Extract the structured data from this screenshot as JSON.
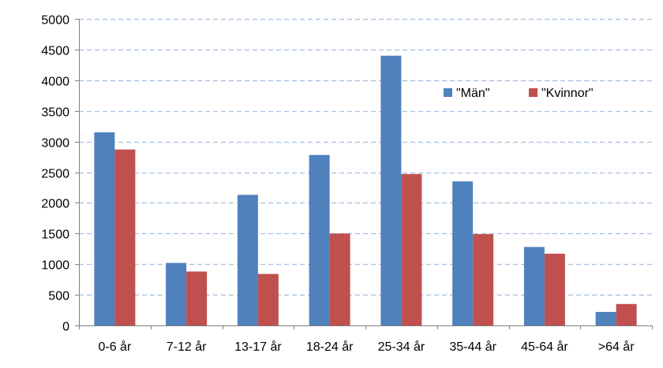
{
  "chart_data": {
    "type": "bar",
    "categories": [
      "0-6 år",
      "7-12 år",
      "13-17 år",
      "18-24 år",
      "25-34 år",
      "35-44 år",
      "45-64 år",
      ">64 år"
    ],
    "series": [
      {
        "name": "\"Män\"",
        "color": "#4f81bd",
        "values": [
          3150,
          1020,
          2130,
          2780,
          4400,
          2350,
          1280,
          220
        ]
      },
      {
        "name": "\"Kvinnor\"",
        "color": "#c0504d",
        "values": [
          2870,
          880,
          840,
          1500,
          2470,
          1490,
          1170,
          350
        ]
      }
    ],
    "yticks": [
      "0",
      "500",
      "1000",
      "1500",
      "2000",
      "2500",
      "3000",
      "3500",
      "4000",
      "4500",
      "5000"
    ],
    "ylim": [
      0,
      5000
    ],
    "title": "",
    "xlabel": "",
    "ylabel": "",
    "grid": true,
    "grid_color": "#a6c0df",
    "legend_position": "top-right"
  }
}
